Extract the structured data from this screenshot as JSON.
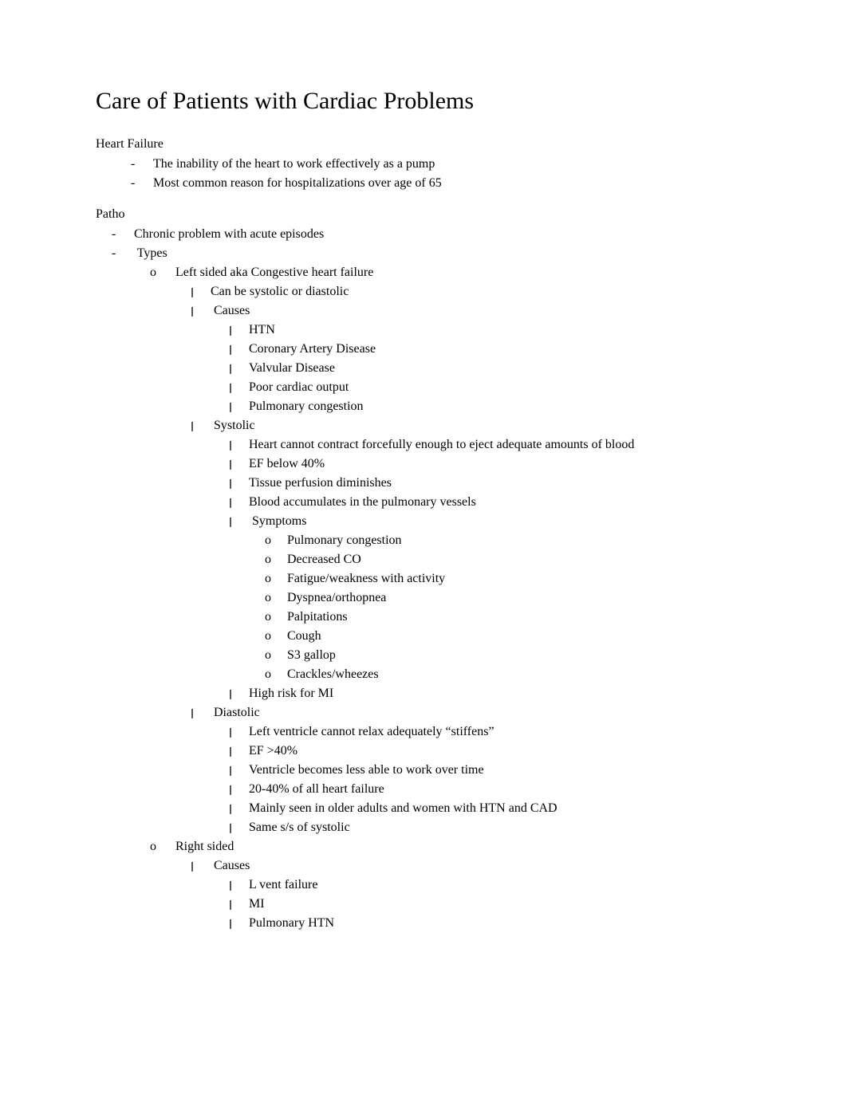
{
  "title": "Care of Patients with Cardiac Problems",
  "section1": {
    "heading": "Heart Failure",
    "items": [
      "The inability of the heart to work effectively as a pump",
      "Most common reason for hospitalizations over age of 65"
    ]
  },
  "patho": {
    "heading": "Patho",
    "chronic": "Chronic problem with acute episodes",
    "types_label": "Types",
    "left": {
      "label": "Left sided aka Congestive heart failure",
      "can_be": "Can be systolic or diastolic",
      "causes_label": "Causes",
      "causes": [
        "HTN",
        "Coronary Artery Disease",
        "Valvular Disease",
        "Poor cardiac output",
        "Pulmonary congestion"
      ],
      "systolic": {
        "label": "Systolic",
        "items": [
          "Heart cannot contract forcefully enough to eject adequate amounts of blood",
          "EF below 40%",
          "Tissue perfusion diminishes",
          "Blood accumulates in the pulmonary vessels"
        ],
        "symptoms_label": "Symptoms",
        "symptoms": [
          "Pulmonary congestion",
          "Decreased CO",
          "Fatigue/weakness with activity",
          "Dyspnea/orthopnea",
          "Palpitations",
          "Cough",
          "S3 gallop",
          "Crackles/wheezes"
        ],
        "high_risk": "High risk for MI"
      },
      "diastolic": {
        "label": "Diastolic",
        "items": [
          "Left ventricle cannot relax adequately “stiffens”",
          "EF >40%",
          "Ventricle becomes less able to work over time",
          "20-40% of all heart failure",
          "Mainly seen in older adults and women with HTN and CAD",
          "Same s/s of systolic"
        ]
      }
    },
    "right": {
      "label": "Right sided",
      "causes_label": "Causes",
      "causes": [
        "L vent failure",
        "MI",
        "Pulmonary HTN"
      ]
    }
  },
  "style": {
    "bg": "#ffffff",
    "text_color": "#000000",
    "title_fontsize": 30,
    "body_fontsize": 16,
    "font_family": "Times New Roman"
  }
}
